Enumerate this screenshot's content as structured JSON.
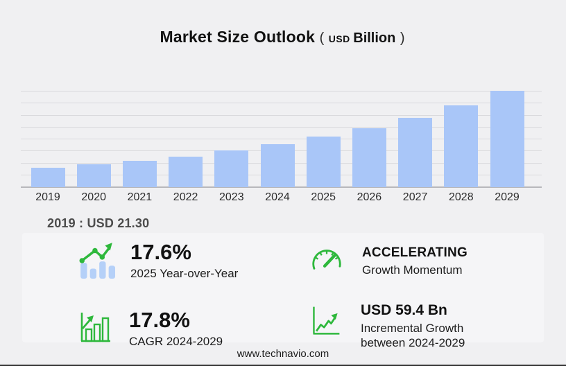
{
  "title": {
    "main": "Market Size Outlook",
    "paren_open": "(",
    "unit_small": "USD",
    "unit_bold": "Billion",
    "paren_close": ")"
  },
  "chart_data": {
    "type": "bar",
    "categories": [
      "2019",
      "2020",
      "2021",
      "2022",
      "2023",
      "2024",
      "2025",
      "2026",
      "2027",
      "2028",
      "2029"
    ],
    "values": [
      21.3,
      24.6,
      28.7,
      33.5,
      39.7,
      46.6,
      54.8,
      64.4,
      75.8,
      89.2,
      105.0
    ],
    "title": "Market Size Outlook (USD Billion)",
    "xlabel": "",
    "ylabel": "",
    "ylim": [
      0,
      105
    ],
    "grid": true,
    "gridline_count": 9,
    "legend": false,
    "bar_color": "#a9c6f8"
  },
  "annotation_2019": "2019 : USD  21.30",
  "stats": [
    {
      "icon": "bar-chart-trend-icon",
      "value": "17.6%",
      "label": "2025 Year-over-Year"
    },
    {
      "icon": "speedometer-icon",
      "value": "ACCELERATING",
      "label": "Growth Momentum"
    },
    {
      "icon": "growth-bars-icon",
      "value": "17.8%",
      "label": "CAGR 2024-2029"
    },
    {
      "icon": "trend-line-icon",
      "value": "USD 59.4 Bn",
      "label": "Incremental Growth",
      "label2": "between 2024-2029"
    }
  ],
  "footer": {
    "website": "www.technavio.com"
  },
  "colors": {
    "background": "#f0f0f2",
    "panel": "#f5f5f7",
    "bar": "#a9c6f8",
    "gridline": "#d9d9dc",
    "baseline": "#b7b7bb",
    "accent_green": "#2eb83c",
    "icon_blue": "#b5d0f8"
  }
}
